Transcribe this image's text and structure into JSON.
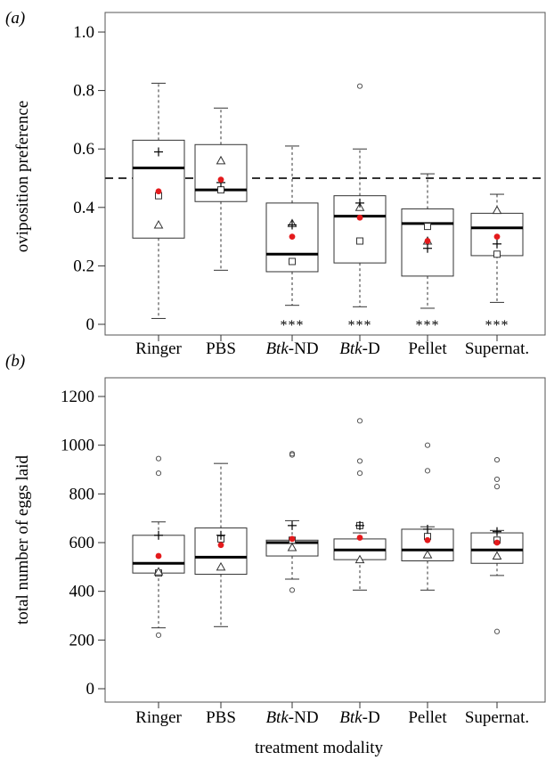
{
  "chart_data": [
    {
      "type": "boxplot",
      "panel_label": "(a)",
      "ylabel": "oviposition preference",
      "xlabel": "",
      "ylim": [
        0,
        1.0
      ],
      "yticks": [
        {
          "value": 0,
          "label": "0"
        },
        {
          "value": 0.2,
          "label": "0.2"
        },
        {
          "value": 0.4,
          "label": "0.4"
        },
        {
          "value": 0.6,
          "label": "0.6"
        },
        {
          "value": 0.8,
          "label": "0.8"
        },
        {
          "value": 1.0,
          "label": "1.0"
        }
      ],
      "reference_line": 0.5,
      "categories": [
        {
          "prefix": "",
          "suffix": "Ringer"
        },
        {
          "prefix": "",
          "suffix": "PBS"
        },
        {
          "prefix": "Btk",
          "suffix": "-ND"
        },
        {
          "prefix": "Btk",
          "suffix": "-D"
        },
        {
          "prefix": "",
          "suffix": "Pellet"
        },
        {
          "prefix": "",
          "suffix": "Supernat."
        }
      ],
      "significance": [
        "",
        "",
        "***",
        "***",
        "***",
        "***"
      ],
      "boxes": [
        {
          "whisker_low": 0.02,
          "q1": 0.295,
          "median": 0.535,
          "q3": 0.63,
          "whisker_high": 0.825,
          "outliers": []
        },
        {
          "whisker_low": 0.185,
          "q1": 0.42,
          "median": 0.46,
          "q3": 0.615,
          "whisker_high": 0.74,
          "outliers": []
        },
        {
          "whisker_low": 0.065,
          "q1": 0.18,
          "median": 0.24,
          "q3": 0.415,
          "whisker_high": 0.61,
          "outliers": []
        },
        {
          "whisker_low": 0.06,
          "q1": 0.21,
          "median": 0.37,
          "q3": 0.44,
          "whisker_high": 0.6,
          "outliers": [
            0.815
          ]
        },
        {
          "whisker_low": 0.055,
          "q1": 0.165,
          "median": 0.345,
          "q3": 0.395,
          "whisker_high": 0.515,
          "outliers": []
        },
        {
          "whisker_low": 0.075,
          "q1": 0.235,
          "median": 0.33,
          "q3": 0.38,
          "whisker_high": 0.445,
          "outliers": []
        }
      ],
      "markers": {
        "square": [
          0.44,
          0.46,
          0.215,
          0.285,
          0.335,
          0.24
        ],
        "triangle": [
          0.34,
          0.56,
          0.345,
          0.4,
          0.285,
          0.39
        ],
        "plus": [
          0.59,
          0.485,
          0.34,
          0.415,
          0.26,
          0.275
        ],
        "mean": [
          0.455,
          0.495,
          0.3,
          0.365,
          0.285,
          0.3
        ]
      },
      "colors": {
        "mean": "#e41a1c"
      }
    },
    {
      "type": "boxplot",
      "panel_label": "(b)",
      "ylabel": "total number of eggs laid",
      "xlabel": "treatment modality",
      "ylim": [
        0,
        1200
      ],
      "yticks": [
        {
          "value": 0,
          "label": "0"
        },
        {
          "value": 200,
          "label": "200"
        },
        {
          "value": 400,
          "label": "400"
        },
        {
          "value": 600,
          "label": "600"
        },
        {
          "value": 800,
          "label": "800"
        },
        {
          "value": 1000,
          "label": "1000"
        },
        {
          "value": 1200,
          "label": "1200"
        }
      ],
      "categories": [
        {
          "prefix": "",
          "suffix": "Ringer"
        },
        {
          "prefix": "",
          "suffix": "PBS"
        },
        {
          "prefix": "Btk",
          "suffix": "-ND"
        },
        {
          "prefix": "Btk",
          "suffix": "-D"
        },
        {
          "prefix": "",
          "suffix": "Pellet"
        },
        {
          "prefix": "",
          "suffix": "Supernat."
        }
      ],
      "boxes": [
        {
          "whisker_low": 250,
          "q1": 475,
          "median": 515,
          "q3": 630,
          "whisker_high": 685,
          "outliers": [
            220,
            885,
            945
          ]
        },
        {
          "whisker_low": 255,
          "q1": 470,
          "median": 540,
          "q3": 660,
          "whisker_high": 925,
          "outliers": []
        },
        {
          "whisker_low": 450,
          "q1": 545,
          "median": 600,
          "q3": 610,
          "whisker_high": 690,
          "outliers": [
            405,
            960,
            965
          ]
        },
        {
          "whisker_low": 405,
          "q1": 530,
          "median": 570,
          "q3": 615,
          "whisker_high": 640,
          "outliers": [
            885,
            935,
            1100
          ]
        },
        {
          "whisker_low": 405,
          "q1": 525,
          "median": 570,
          "q3": 655,
          "whisker_high": 665,
          "outliers": [
            895,
            1000
          ]
        },
        {
          "whisker_low": 465,
          "q1": 515,
          "median": 570,
          "q3": 640,
          "whisker_high": 650,
          "outliers": [
            235,
            830,
            860,
            940
          ]
        }
      ],
      "markers": {
        "square": [
          475,
          615,
          610,
          670,
          625,
          610
        ],
        "triangle": [
          480,
          500,
          580,
          530,
          550,
          545
        ],
        "plus": [
          630,
          630,
          670,
          670,
          655,
          645
        ],
        "mean": [
          545,
          590,
          615,
          620,
          610,
          600
        ]
      },
      "colors": {
        "mean": "#e41a1c"
      }
    }
  ]
}
